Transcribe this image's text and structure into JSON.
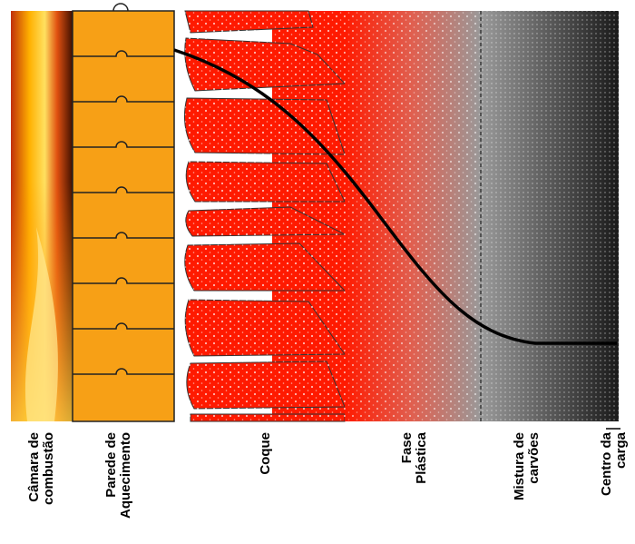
{
  "labels": [
    {
      "lines": [
        "Câmara de",
        "combustão"
      ]
    },
    {
      "lines": [
        "Parede de",
        "Aquecimento"
      ]
    },
    {
      "lines": [
        "Coque"
      ]
    },
    {
      "lines": [
        "Fase",
        "Plástica"
      ]
    },
    {
      "lines": [
        "Mistura de",
        "carvões"
      ]
    },
    {
      "lines": [
        "Centro da",
        "carga"
      ]
    }
  ]
}
